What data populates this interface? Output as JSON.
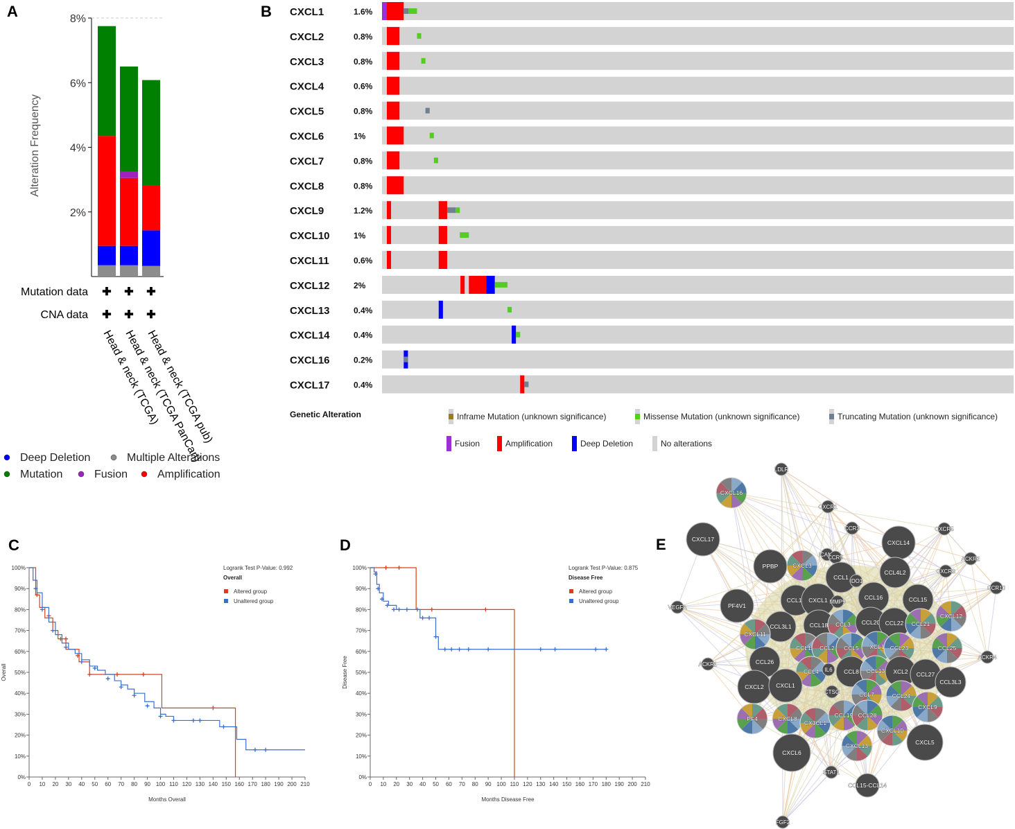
{
  "panels": {
    "A": "A",
    "B": "B",
    "C": "C",
    "D": "D",
    "E": "E"
  },
  "chart_data": [
    {
      "panel": "A",
      "type": "bar",
      "ylabel": "Alteration Frequency",
      "yticks": [
        "2%",
        "4%",
        "6%",
        "8%"
      ],
      "ylim": [
        0,
        8
      ],
      "categories": [
        "Head & neck (TCGA)",
        "Head & neck (TCGA PanCan)",
        "Head & neck (TCGA pub)"
      ],
      "series": [
        {
          "name": "Multiple Alterations",
          "color": "#8c8c8c",
          "values": [
            0.35,
            0.35,
            0.33
          ]
        },
        {
          "name": "Deep Deletion",
          "color": "#0000ff",
          "values": [
            0.6,
            0.6,
            1.1
          ]
        },
        {
          "name": "Amplification",
          "color": "#ff0000",
          "values": [
            3.4,
            2.1,
            1.4
          ]
        },
        {
          "name": "Fusion",
          "color": "#a020c0",
          "values": [
            0,
            0.2,
            0
          ]
        },
        {
          "name": "Mutation",
          "color": "#008000",
          "values": [
            3.4,
            3.25,
            3.25
          ]
        }
      ],
      "rows": [
        {
          "label": "Mutation data",
          "marks": [
            "✚",
            "✚",
            "✚"
          ]
        },
        {
          "label": "CNA data",
          "marks": [
            "✚",
            "✚",
            "✚"
          ]
        }
      ],
      "legend": [
        {
          "label": "Deep Deletion",
          "color": "#0000ff"
        },
        {
          "label": "Multiple Alterations",
          "color": "#8c8c8c"
        },
        {
          "label": "Mutation",
          "color": "#008000"
        },
        {
          "label": "Fusion",
          "color": "#a020c0"
        },
        {
          "label": "Amplification",
          "color": "#ff0000"
        }
      ]
    },
    {
      "panel": "B",
      "type": "heatmap",
      "genes": [
        {
          "name": "CXCL1",
          "pct": "1.6%",
          "alts": [
            [
              "fusion",
              0.0,
              0.9
            ],
            [
              "amp",
              0.8,
              3.6
            ],
            [
              "trunc",
              3.6,
              4.4
            ],
            [
              "mis",
              4.4,
              5.8
            ]
          ]
        },
        {
          "name": "CXCL2",
          "pct": "0.8%",
          "alts": [
            [
              "amp",
              0.8,
              2.9
            ],
            [
              "mis",
              5.8,
              6.5
            ]
          ]
        },
        {
          "name": "CXCL3",
          "pct": "0.8%",
          "alts": [
            [
              "amp",
              0.8,
              2.9
            ],
            [
              "mis",
              6.5,
              7.2
            ]
          ]
        },
        {
          "name": "CXCL4",
          "pct": "0.6%",
          "alts": [
            [
              "amp",
              0.8,
              2.9
            ]
          ]
        },
        {
          "name": "CXCL5",
          "pct": "0.8%",
          "alts": [
            [
              "amp",
              0.8,
              2.9
            ],
            [
              "trunc",
              7.2,
              7.9
            ]
          ]
        },
        {
          "name": "CXCL6",
          "pct": "1%",
          "alts": [
            [
              "amp",
              0.8,
              3.6
            ],
            [
              "mis",
              7.9,
              8.6
            ]
          ]
        },
        {
          "name": "CXCL7",
          "pct": "0.8%",
          "alts": [
            [
              "amp",
              0.8,
              2.9
            ],
            [
              "mis",
              8.6,
              9.3
            ]
          ]
        },
        {
          "name": "CXCL8",
          "pct": "0.8%",
          "alts": [
            [
              "amp",
              0.8,
              3.6
            ]
          ]
        },
        {
          "name": "CXCL9",
          "pct": "1.2%",
          "alts": [
            [
              "amp",
              0.8,
              1.5
            ],
            [
              "amp",
              9.4,
              10.8
            ],
            [
              "trunc",
              10.8,
              11.5
            ],
            [
              "trunc",
              11.5,
              12.2
            ],
            [
              "mis",
              12.2,
              12.9
            ]
          ]
        },
        {
          "name": "CXCL10",
          "pct": "1%",
          "alts": [
            [
              "amp",
              0.8,
              1.5
            ],
            [
              "amp",
              9.4,
              10.8
            ],
            [
              "mis",
              12.9,
              14.4
            ]
          ]
        },
        {
          "name": "CXCL11",
          "pct": "0.6%",
          "alts": [
            [
              "amp",
              0.8,
              1.5
            ],
            [
              "amp",
              9.4,
              10.8
            ]
          ]
        },
        {
          "name": "CXCL12",
          "pct": "2%",
          "alts": [
            [
              "amp",
              13.0,
              13.7
            ],
            [
              "amp",
              14.4,
              17.3
            ],
            [
              "dd",
              17.3,
              18.7
            ],
            [
              "mis",
              18.7,
              20.8
            ]
          ]
        },
        {
          "name": "CXCL13",
          "pct": "0.4%",
          "alts": [
            [
              "dd",
              9.4,
              10.1
            ],
            [
              "mis",
              20.8,
              21.5
            ]
          ]
        },
        {
          "name": "CXCL14",
          "pct": "0.4%",
          "alts": [
            [
              "dd",
              21.5,
              22.2
            ],
            [
              "mis",
              22.2,
              22.9
            ]
          ]
        },
        {
          "name": "CXCL16",
          "pct": "0.2%",
          "alts": [
            [
              "dd",
              3.6,
              4.3
            ],
            [
              "trunc",
              3.6,
              4.3
            ]
          ]
        },
        {
          "name": "CXCL17",
          "pct": "0.4%",
          "alts": [
            [
              "amp",
              22.9,
              23.6
            ],
            [
              "trunc",
              23.6,
              24.3
            ]
          ]
        }
      ],
      "legend_title": "Genetic Alteration",
      "legend": [
        {
          "key": "inframe",
          "label": "Inframe Mutation (unknown significance)",
          "color": "#9b7a2e"
        },
        {
          "key": "mis",
          "label": "Missense Mutation (unknown significance)",
          "color": "#55cc22"
        },
        {
          "key": "trunc",
          "label": "Truncating Mutation (unknown significance)",
          "color": "#708090"
        },
        {
          "key": "fusion",
          "label": "Fusion",
          "color": "#9b30d9"
        },
        {
          "key": "amp",
          "label": "Amplification",
          "color": "#ff0000"
        },
        {
          "key": "dd",
          "label": "Deep Deletion",
          "color": "#0000ff"
        },
        {
          "key": "none",
          "label": "No alterations",
          "color": "#d3d3d3"
        }
      ]
    },
    {
      "panel": "C",
      "type": "line",
      "title": "Logrank Test P-Value: 0.992",
      "subtitle": "Overall",
      "xlabel": "Months Overall",
      "ylabel": "Overall",
      "xlim": [
        0,
        210
      ],
      "ylim": [
        0,
        100
      ],
      "xticks": [
        0,
        10,
        20,
        30,
        40,
        50,
        60,
        70,
        80,
        90,
        100,
        110,
        120,
        130,
        140,
        150,
        160,
        170,
        180,
        190,
        200,
        210
      ],
      "yticks": [
        "0%",
        "10%",
        "20%",
        "30%",
        "40%",
        "50%",
        "60%",
        "70%",
        "80%",
        "90%",
        "100%"
      ],
      "series": [
        {
          "name": "Altered group",
          "color": "#d9401c",
          "x": [
            0,
            5,
            8,
            12,
            18,
            22,
            28,
            38,
            46,
            67,
            87,
            101,
            141,
            157
          ],
          "y": [
            100,
            87,
            81,
            76,
            70,
            66,
            61,
            55,
            49,
            49,
            49,
            33,
            33,
            0
          ],
          "censor": [
            [
              6,
              87
            ],
            [
              15,
              77
            ],
            [
              24,
              66
            ],
            [
              28,
              66
            ],
            [
              37,
              58
            ],
            [
              46,
              49
            ],
            [
              67,
              49
            ],
            [
              87,
              49
            ],
            [
              140,
              33
            ]
          ]
        },
        {
          "name": "Unaltered group",
          "color": "#3a6fd0",
          "x": [
            0,
            3,
            6,
            10,
            15,
            20,
            25,
            30,
            35,
            40,
            46,
            52,
            58,
            65,
            70,
            75,
            80,
            88,
            95,
            100,
            104,
            110,
            130,
            140,
            145,
            158,
            165,
            175,
            210
          ],
          "y": [
            100,
            94,
            88,
            81,
            74,
            68,
            64,
            61,
            59,
            56,
            53,
            51,
            49,
            46,
            44,
            42,
            40,
            36,
            33,
            30,
            29,
            27,
            27,
            27,
            24,
            18,
            13,
            13,
            13
          ],
          "censor": [
            [
              5,
              90
            ],
            [
              10,
              80
            ],
            [
              18,
              70
            ],
            [
              28,
              62
            ],
            [
              40,
              55
            ],
            [
              50,
              52
            ],
            [
              60,
              47
            ],
            [
              70,
              43
            ],
            [
              80,
              39
            ],
            [
              90,
              34
            ],
            [
              100,
              29
            ],
            [
              110,
              27
            ],
            [
              125,
              27
            ],
            [
              130,
              27
            ],
            [
              148,
              24
            ],
            [
              172,
              13
            ],
            [
              180,
              13
            ]
          ]
        }
      ],
      "legend": [
        "Altered group",
        "Unaltered group"
      ]
    },
    {
      "panel": "D",
      "type": "line",
      "title": "Logrank Test P-Value: 0.875",
      "subtitle": "Disease Free",
      "xlabel": "Months Disease Free",
      "ylabel": "Disease Free",
      "xlim": [
        0,
        210
      ],
      "ylim": [
        0,
        100
      ],
      "xticks": [
        0,
        10,
        20,
        30,
        40,
        50,
        60,
        70,
        80,
        90,
        100,
        110,
        120,
        130,
        140,
        150,
        160,
        170,
        180,
        190,
        200,
        210
      ],
      "yticks": [
        "0%",
        "10%",
        "20%",
        "30%",
        "40%",
        "50%",
        "60%",
        "70%",
        "80%",
        "90%",
        "100%"
      ],
      "series": [
        {
          "name": "Altered group",
          "color": "#d9401c",
          "x": [
            0,
            35,
            110,
            110
          ],
          "y": [
            100,
            80,
            80,
            0
          ],
          "censor": [
            [
              12,
              100
            ],
            [
              22,
              100
            ],
            [
              47,
              80
            ],
            [
              88,
              80
            ]
          ]
        },
        {
          "name": "Unaltered group",
          "color": "#3a6fd0",
          "x": [
            0,
            3,
            5,
            7,
            10,
            14,
            20,
            38,
            50,
            52,
            55,
            180
          ],
          "y": [
            100,
            98,
            92,
            88,
            84,
            82,
            80,
            76,
            67,
            61,
            61,
            61
          ],
          "censor": [
            [
              4,
              97
            ],
            [
              6,
              90
            ],
            [
              9,
              85
            ],
            [
              13,
              82
            ],
            [
              18,
              80
            ],
            [
              22,
              80
            ],
            [
              28,
              80
            ],
            [
              36,
              80
            ],
            [
              40,
              76
            ],
            [
              45,
              76
            ],
            [
              50,
              67
            ],
            [
              57,
              61
            ],
            [
              62,
              61
            ],
            [
              68,
              61
            ],
            [
              75,
              61
            ],
            [
              90,
              61
            ],
            [
              130,
              61
            ],
            [
              141,
              61
            ],
            [
              172,
              61
            ],
            [
              180,
              61
            ]
          ]
        }
      ],
      "legend": [
        "Altered group",
        "Unaltered group"
      ]
    }
  ],
  "network": {
    "nodes": [
      {
        "label": "LDLR",
        "t": "s"
      },
      {
        "label": "CXCL16",
        "t": "p"
      },
      {
        "label": "CXCR1",
        "t": "s"
      },
      {
        "label": "CXCL17",
        "t": "d"
      },
      {
        "label": "CCR3",
        "t": "s"
      },
      {
        "label": "CXCL14",
        "t": "d"
      },
      {
        "label": "CXCR5",
        "t": "s"
      },
      {
        "label": "PPBP",
        "t": "d"
      },
      {
        "label": "CXCL3",
        "t": "p"
      },
      {
        "label": "ICAM1",
        "t": "s"
      },
      {
        "label": "CCR5",
        "t": "s"
      },
      {
        "label": "ACKR2",
        "t": "s"
      },
      {
        "label": "CCL1",
        "t": "d"
      },
      {
        "label": "IDO1",
        "t": "s"
      },
      {
        "label": "CCL4L2",
        "t": "d"
      },
      {
        "label": "CXCR3",
        "t": "s"
      },
      {
        "label": "CCR10",
        "t": "s"
      },
      {
        "label": "PF4V1",
        "t": "d"
      },
      {
        "label": "CCL14",
        "t": "d"
      },
      {
        "label": "CXCL1",
        "t": "d"
      },
      {
        "label": "MMP9",
        "t": "s"
      },
      {
        "label": "CCL16",
        "t": "d"
      },
      {
        "label": "CCL15",
        "t": "d"
      },
      {
        "label": "VEGFA",
        "t": "s"
      },
      {
        "label": "CCL3L1",
        "t": "d"
      },
      {
        "label": "CCL18",
        "t": "d"
      },
      {
        "label": "CCL3",
        "t": "p"
      },
      {
        "label": "CCL20",
        "t": "d"
      },
      {
        "label": "CCL22",
        "t": "d"
      },
      {
        "label": "CCL21",
        "t": "p"
      },
      {
        "label": "CXCL12",
        "t": "p"
      },
      {
        "label": "CXCL11",
        "t": "p"
      },
      {
        "label": "CCL11",
        "t": "p"
      },
      {
        "label": "CCL2",
        "t": "p"
      },
      {
        "label": "CCL5",
        "t": "p"
      },
      {
        "label": "XCL1",
        "t": "p"
      },
      {
        "label": "CCL23",
        "t": "p"
      },
      {
        "label": "CCL25",
        "t": "p"
      },
      {
        "label": "CCL26",
        "t": "d"
      },
      {
        "label": "ACKR1",
        "t": "s"
      },
      {
        "label": "CCL4",
        "t": "p"
      },
      {
        "label": "IL6",
        "t": "s"
      },
      {
        "label": "CCL8",
        "t": "d"
      },
      {
        "label": "CCL13",
        "t": "p"
      },
      {
        "label": "XCL2",
        "t": "d"
      },
      {
        "label": "CCL27",
        "t": "d"
      },
      {
        "label": "ACKR4",
        "t": "s"
      },
      {
        "label": "CXCL2",
        "t": "d"
      },
      {
        "label": "CXCL1",
        "t": "d"
      },
      {
        "label": "CCL3L3",
        "t": "d"
      },
      {
        "label": "CTSG",
        "t": "s"
      },
      {
        "label": "CCL7",
        "t": "p"
      },
      {
        "label": "CCL24",
        "t": "p"
      },
      {
        "label": "CXCL9",
        "t": "p"
      },
      {
        "label": "PF4",
        "t": "p"
      },
      {
        "label": "CXCL8",
        "t": "p"
      },
      {
        "label": "CX3CL1",
        "t": "p"
      },
      {
        "label": "CCL19",
        "t": "p"
      },
      {
        "label": "CCL28",
        "t": "p"
      },
      {
        "label": "CXCL10",
        "t": "p"
      },
      {
        "label": "CXCL13",
        "t": "p"
      },
      {
        "label": "CXCL6",
        "t": "d"
      },
      {
        "label": "CXCL5",
        "t": "d"
      },
      {
        "label": "STAT1",
        "t": "s"
      },
      {
        "label": "CCL15-CCL14",
        "t": "d"
      },
      {
        "label": "FGF2",
        "t": "s"
      }
    ]
  }
}
